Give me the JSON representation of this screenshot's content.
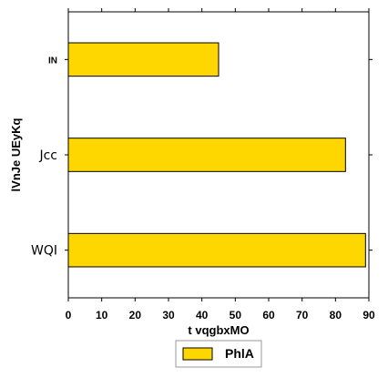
{
  "chart_data": {
    "type": "bar",
    "orientation": "horizontal",
    "categories": [
      "WQI",
      "Jcc",
      "IN"
    ],
    "series": [
      {
        "name": "PhlA",
        "values": [
          89,
          83,
          45
        ],
        "color": "#FFD700"
      }
    ],
    "xlabel": "t vqgbxMO",
    "ylabel": "lVnJe UEyKq",
    "xlim": [
      0,
      90
    ],
    "xticks": [
      0,
      10,
      20,
      30,
      40,
      50,
      60,
      70,
      80,
      90
    ],
    "grid": false,
    "legend": "bottom"
  }
}
